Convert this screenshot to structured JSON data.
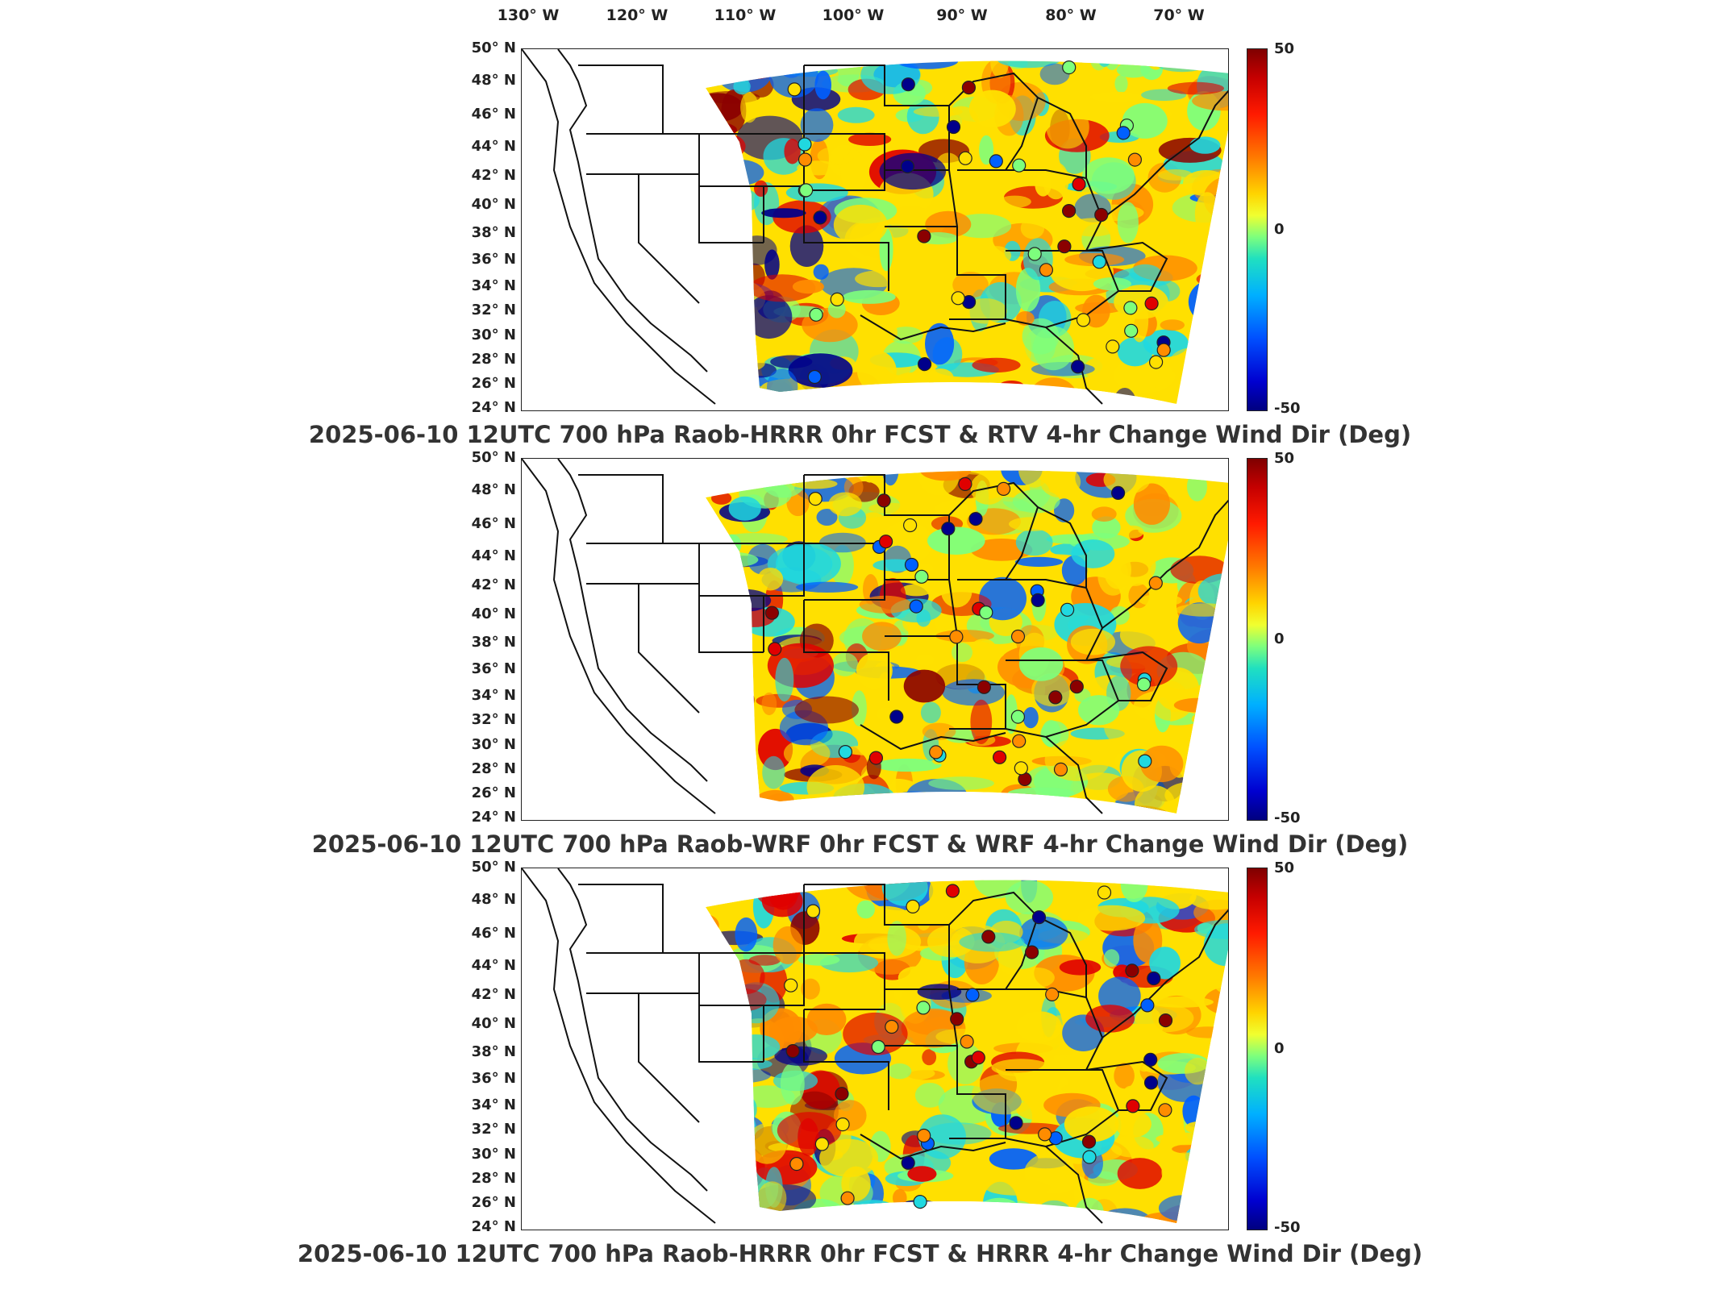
{
  "lon_ticks": [
    "130° W",
    "120° W",
    "110° W",
    "100° W",
    "90° W",
    "80° W",
    "70° W"
  ],
  "lat_ticks": [
    "50° N",
    "48° N",
    "46° N",
    "44° N",
    "42° N",
    "40° N",
    "38° N",
    "36° N",
    "34° N",
    "32° N",
    "30° N",
    "28° N",
    "26° N",
    "24° N"
  ],
  "colorbar": {
    "max_label": "50",
    "mid_label": "0",
    "min_label": "-50",
    "range": [
      -50,
      50
    ]
  },
  "panels": [
    {
      "title": "2025-06-10 12UTC 700 hPa Raob-HRRR 0hr FCST & RTV 4-hr Change Wind Dir (Deg)"
    },
    {
      "title": "2025-06-10 12UTC 700 hPa Raob-WRF 0hr FCST & WRF 4-hr Change Wind Dir (Deg)"
    },
    {
      "title": "2025-06-10 12UTC 700 hPa Raob-HRRR 0hr FCST & HRRR 4-hr Change Wind Dir (Deg)"
    }
  ],
  "colors": {
    "dark_red": "#8b0000",
    "red": "#e00000",
    "orange": "#ff8c00",
    "yellow": "#ffe000",
    "green": "#7dff7d",
    "cyan": "#20d8e0",
    "blue": "#0060ff",
    "dark_blue": "#00008b"
  }
}
